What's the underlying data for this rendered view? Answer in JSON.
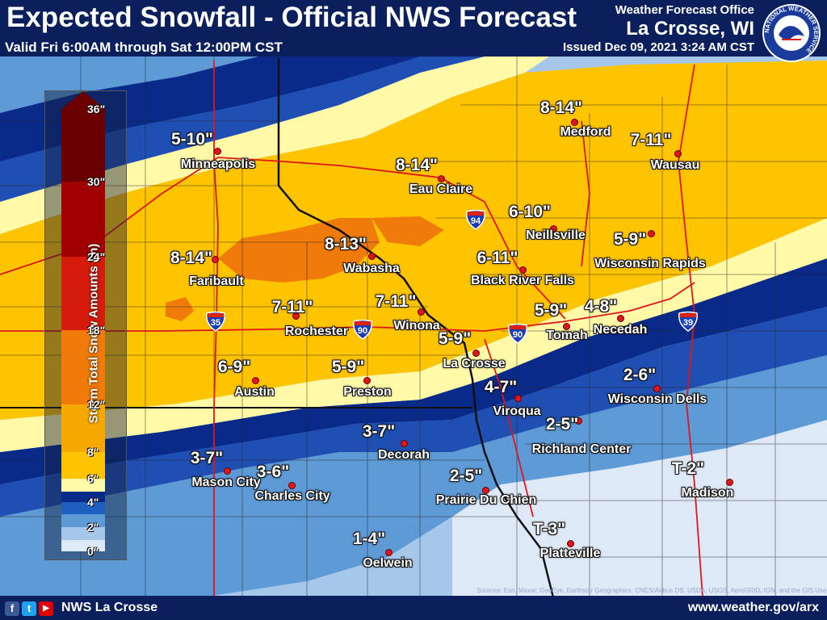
{
  "header": {
    "title": "Expected Snowfall - Official NWS Forecast",
    "subtitle": "Valid Fri 6:00AM through Sat 12:00PM CST",
    "office": "Weather Forecast Office",
    "city": "La Crosse, WI",
    "issued": "Issued Dec 09, 2021 3:24 AM CST",
    "logo_text": "NATIONAL WEATHER SERVICE"
  },
  "footer": {
    "left": "NWS La Crosse",
    "right": "www.weather.gov/arx",
    "attribution": "Sources: Esri, Maxar, GeoEye, Earthstar Geographics, CNES/Airbus DS, USDA, USGS, AeroGRID, IGN, and the GIS User Community"
  },
  "legend": {
    "title": "Storm Total Snow Amounts (in)",
    "ticks": [
      "36\"",
      "30\"",
      "24\"",
      "18\"",
      "12\"",
      "8\"",
      "6\"",
      "4\"",
      "2\"",
      "0\""
    ],
    "colors": [
      "#6a0000",
      "#a00000",
      "#d51c0c",
      "#f07a0a",
      "#f5a800",
      "#ffc400",
      "#fff9a8",
      "#0a2a8a",
      "#1f5fbf",
      "#5d9ad6",
      "#a7c7ea",
      "#dde9f6"
    ]
  },
  "locations": [
    {
      "name": "Minneapolis",
      "amount": "5-10\""
    },
    {
      "name": "Eau Claire",
      "amount": "8-14\""
    },
    {
      "name": "Medford",
      "amount": "8-14\""
    },
    {
      "name": "Wausau",
      "amount": "7-11\""
    },
    {
      "name": "Neillsville",
      "amount": "6-10\""
    },
    {
      "name": "Wisconsin Rapids",
      "amount": "5-9\""
    },
    {
      "name": "Faribault",
      "amount": "8-14\""
    },
    {
      "name": "Wabasha",
      "amount": "8-13\""
    },
    {
      "name": "Black River Falls",
      "amount": "6-11\""
    },
    {
      "name": "Rochester",
      "amount": "7-11\""
    },
    {
      "name": "Winona",
      "amount": "7-11\""
    },
    {
      "name": "Tomah",
      "amount": "5-9\""
    },
    {
      "name": "Necedah",
      "amount": "4-8\""
    },
    {
      "name": "La Crosse",
      "amount": "5-9\""
    },
    {
      "name": "Austin",
      "amount": "6-9\""
    },
    {
      "name": "Preston",
      "amount": "5-9\""
    },
    {
      "name": "Viroqua",
      "amount": "4-7\""
    },
    {
      "name": "Wisconsin Dells",
      "amount": "2-6\""
    },
    {
      "name": "Richland Center",
      "amount": "2-5\""
    },
    {
      "name": "Decorah",
      "amount": "3-7\""
    },
    {
      "name": "Mason City",
      "amount": "3-7\""
    },
    {
      "name": "Charles City",
      "amount": "3-6\""
    },
    {
      "name": "Prairie Du Chien",
      "amount": "2-5\""
    },
    {
      "name": "Madison",
      "amount": "T-2\""
    },
    {
      "name": "Platteville",
      "amount": "T-3\""
    },
    {
      "name": "Oelwein",
      "amount": "1-4\""
    }
  ],
  "interstates": [
    "35",
    "90",
    "90",
    "94",
    "39"
  ]
}
